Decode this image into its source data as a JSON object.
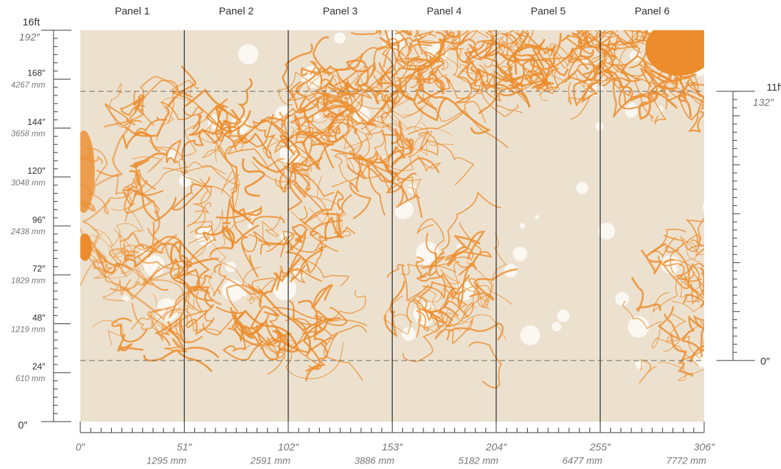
{
  "panels": [
    "Panel 1",
    "Panel 2",
    "Panel 3",
    "Panel 4",
    "Panel 5",
    "Panel 6"
  ],
  "left_ruler": {
    "feet": "16ft",
    "top": "192″",
    "marks": [
      {
        "inches": "168″",
        "mm": "4267 mm"
      },
      {
        "inches": "144″",
        "mm": "3658 mm"
      },
      {
        "inches": "120″",
        "mm": "3048 mm"
      },
      {
        "inches": "96″",
        "mm": "2438 mm"
      },
      {
        "inches": "72″",
        "mm": "1829 mm"
      },
      {
        "inches": "48″",
        "mm": "1219 mm"
      },
      {
        "inches": "24″",
        "mm": "610 mm"
      }
    ],
    "zero": "0″"
  },
  "right_ruler": {
    "feet": "11ft",
    "top": "132″",
    "zero": "0″"
  },
  "bottom_ruler": {
    "zero": "0″",
    "marks": [
      {
        "inches": "51″",
        "mm": "1295 mm"
      },
      {
        "inches": "102″",
        "mm": "2591 mm"
      },
      {
        "inches": "153″",
        "mm": "3886 mm"
      },
      {
        "inches": "204″",
        "mm": "5182 mm"
      },
      {
        "inches": "255″",
        "mm": "6477 mm"
      },
      {
        "inches": "306″",
        "mm": "7772 mm"
      }
    ]
  }
}
